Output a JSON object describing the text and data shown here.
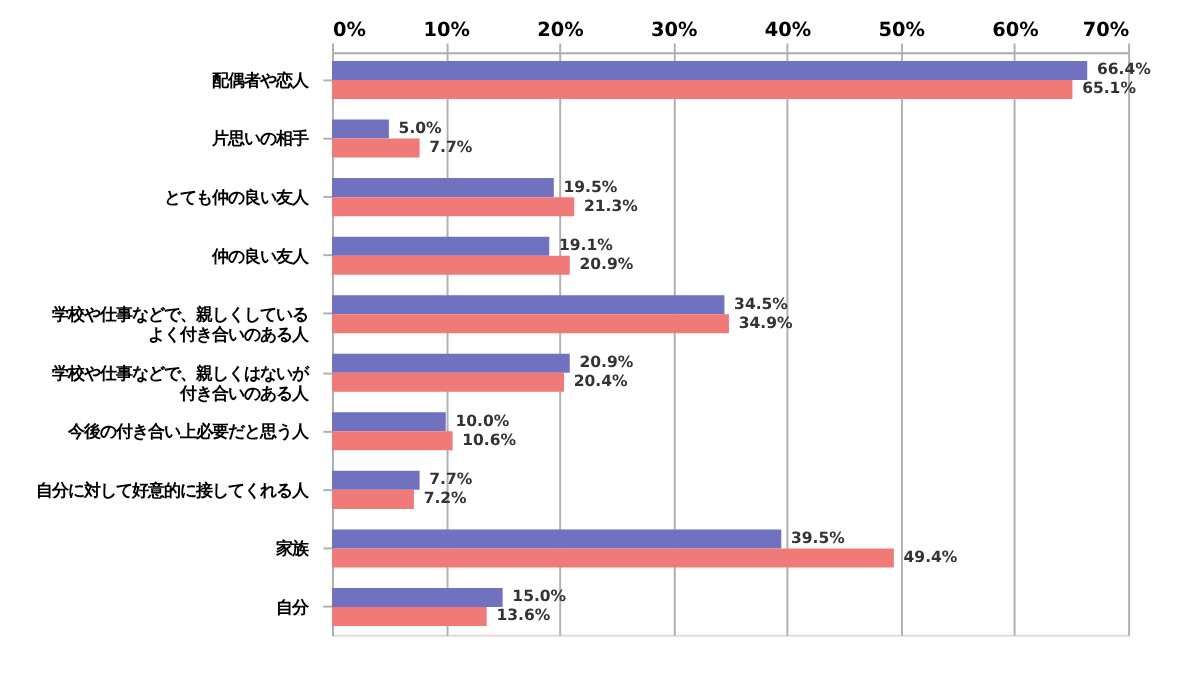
{
  "chart_data": {
    "type": "bar",
    "orientation": "horizontal",
    "categories": [
      "配偶者や恋人",
      "片思いの相手",
      "とても仲の良い友人",
      "仲の良い友人",
      "学校や仕事などで、親しくしているよく付き合いのある人",
      "学校や仕事などで、親しくはないが付き合いのある人",
      "今後の付き合い上必要だと思う人",
      "自分に対して好意的に接してくれる人",
      "家族",
      "自分"
    ],
    "series": [
      {
        "color": "#7072c0",
        "values": [
          66.4,
          5.0,
          19.5,
          19.1,
          34.5,
          20.9,
          10.0,
          7.7,
          39.5,
          15.0
        ],
        "value_labels": [
          "66.4%",
          "5.0%",
          "19.5%",
          "19.1%",
          "34.5%",
          "20.9%",
          "10.0%",
          "7.7%",
          "39.5%",
          "15.0%"
        ]
      },
      {
        "color": "#f07a78",
        "values": [
          65.1,
          7.7,
          21.3,
          20.9,
          34.9,
          20.4,
          10.6,
          7.2,
          49.4,
          13.6
        ],
        "value_labels": [
          "65.1%",
          "7.7%",
          "21.3%",
          "20.9%",
          "34.9%",
          "20.4%",
          "10.6%",
          "7.2%",
          "49.4%",
          "13.6%"
        ]
      }
    ],
    "xlim": [
      0,
      70
    ],
    "xticks": [
      {
        "value": 0,
        "label": "0%"
      },
      {
        "value": 10,
        "label": "10%"
      },
      {
        "value": 20,
        "label": "20%"
      },
      {
        "value": 30,
        "label": "30%"
      },
      {
        "value": 40,
        "label": "40%"
      },
      {
        "value": 50,
        "label": "50%"
      },
      {
        "value": 60,
        "label": "60%"
      },
      {
        "value": 70,
        "label": "70%"
      }
    ],
    "grid": "x"
  }
}
